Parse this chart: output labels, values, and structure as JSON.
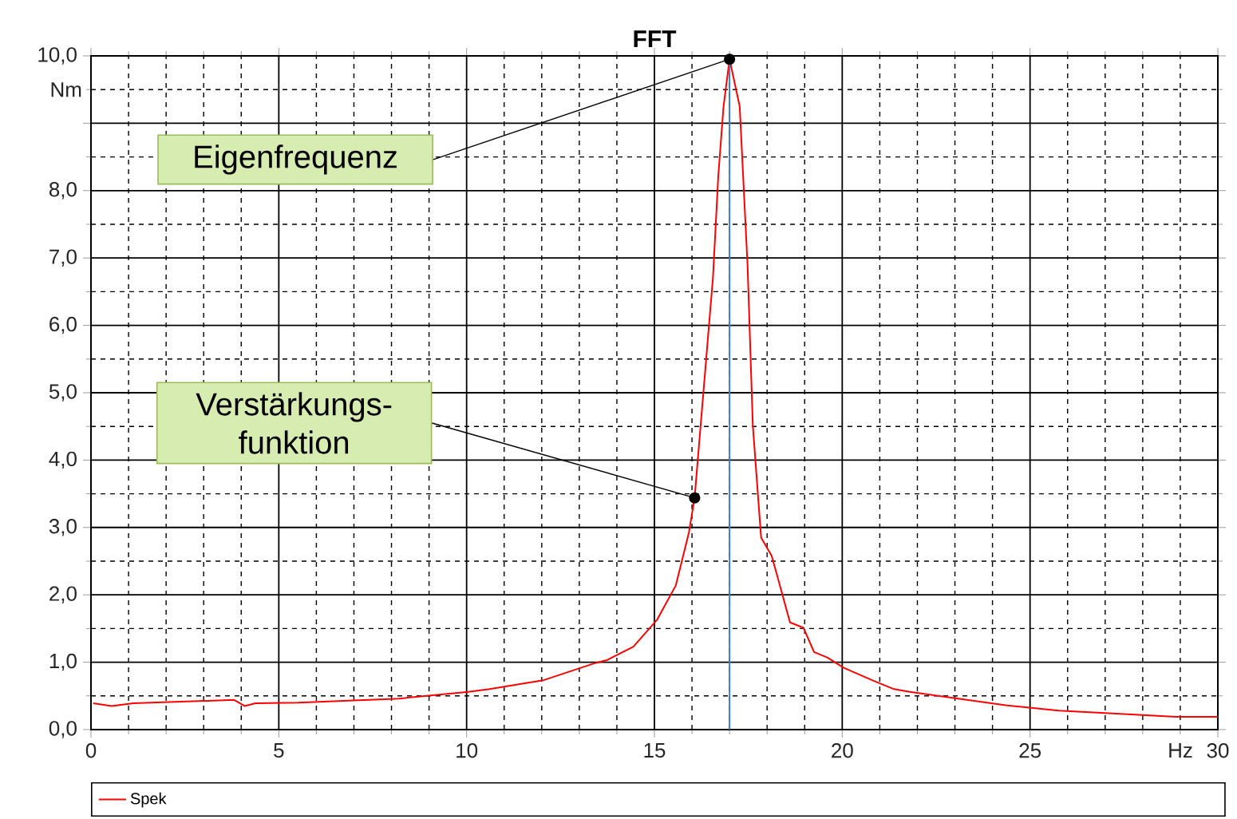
{
  "chart_data": {
    "type": "line",
    "title": "FFT",
    "xlabel": "Hz",
    "ylabel": "Nm",
    "xlim": [
      0,
      30
    ],
    "ylim": [
      0,
      10
    ],
    "xticks": [
      0,
      5,
      10,
      15,
      20,
      25,
      30
    ],
    "yticks": [
      {
        "value": 0,
        "label": "0,0"
      },
      {
        "value": 1,
        "label": "1,0"
      },
      {
        "value": 2,
        "label": "2,0"
      },
      {
        "value": 3,
        "label": "3,0"
      },
      {
        "value": 4,
        "label": "4,0"
      },
      {
        "value": 5,
        "label": "5,0"
      },
      {
        "value": 6,
        "label": "6,0"
      },
      {
        "value": 7,
        "label": "7,0"
      },
      {
        "value": 8,
        "label": "8,0"
      },
      {
        "value": 9,
        "label": null
      },
      {
        "value": 10,
        "label": "10,0"
      }
    ],
    "grid": true,
    "legend": "bottom",
    "marker": "none",
    "line_style": "solid",
    "series": [
      {
        "name": "Spek",
        "color": "#ff0000",
        "x": [
          0.06,
          0.55,
          1.12,
          3.81,
          4.09,
          4.38,
          5.51,
          8.2,
          10.04,
          10.61,
          12.03,
          13.44,
          13.73,
          14.44,
          15.07,
          15.57,
          15.92,
          16.07,
          16.56,
          16.7,
          16.84,
          17.0,
          17.27,
          17.48,
          17.62,
          17.84,
          18.12,
          18.26,
          18.61,
          18.97,
          19.25,
          19.6,
          20.03,
          20.81,
          21.38,
          21.8,
          22.94,
          24.35,
          25.77,
          27.19,
          28.89,
          30
        ],
        "values": [
          0.39,
          0.35,
          0.39,
          0.44,
          0.35,
          0.39,
          0.4,
          0.46,
          0.56,
          0.6,
          0.73,
          0.99,
          1.03,
          1.23,
          1.63,
          2.14,
          2.93,
          3.44,
          6.72,
          8.22,
          9.25,
          9.95,
          9.25,
          6.88,
          4.51,
          2.85,
          2.58,
          2.3,
          1.59,
          1.51,
          1.15,
          1.07,
          0.92,
          0.73,
          0.6,
          0.56,
          0.47,
          0.36,
          0.28,
          0.24,
          0.19,
          0.19
        ]
      }
    ],
    "ref_lines": [
      {
        "axis": "x",
        "value": 17,
        "color": "#3d7fc4"
      }
    ],
    "annotations": [
      {
        "text": "Eigenfrequenz",
        "x": 17,
        "y": 9.95
      },
      {
        "text": "Verstärkungs-funktion",
        "x": 16.07,
        "y": 3.44
      }
    ]
  }
}
